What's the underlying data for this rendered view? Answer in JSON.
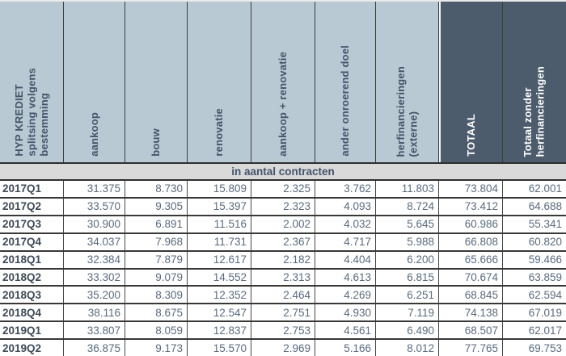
{
  "table": {
    "corner_text": "HYP KREDIET\nsplitsing volgens\nbestemming",
    "header_cells": [
      {
        "label": "aankoop",
        "dark": false
      },
      {
        "label": "bouw",
        "dark": false
      },
      {
        "label": "renovatie",
        "dark": false
      },
      {
        "label": "aankoop + renovatie",
        "dark": false
      },
      {
        "label": "ander onroerend doel",
        "dark": false
      },
      {
        "label": "herfinancieringen\n(externe)",
        "dark": false
      },
      {
        "label": "TOTAAL",
        "dark": true
      },
      {
        "label": "Totaal zonder\nherfinancieringen",
        "dark": true
      }
    ],
    "subheader": "in aantal contracten"
  },
  "colors": {
    "header_light_bg": "#b8c9d3",
    "header_dark_bg": "#4d5c6d",
    "header_text": "#44546a",
    "header_dark_text": "#ffffff",
    "subheader_bg": "#d9d9d9",
    "number_text": "#5a6b7e",
    "row_label_text": "#3e4a57",
    "border": "#383838"
  },
  "chart_data": {
    "type": "table",
    "title": "HYP KREDIET splitsing volgens bestemming",
    "subtitle": "in aantal contracten",
    "columns": [
      "aankoop",
      "bouw",
      "renovatie",
      "aankoop + renovatie",
      "ander onroerend doel",
      "herfinancieringen (externe)",
      "TOTAAL",
      "Totaal zonder herfinancieringen"
    ],
    "row_labels": [
      "2017Q1",
      "2017Q2",
      "2017Q3",
      "2017Q4",
      "2018Q1",
      "2018Q2",
      "2018Q3",
      "2018Q4",
      "2019Q1",
      "2019Q2"
    ],
    "rows": [
      [
        "31.375",
        "8.730",
        "15.809",
        "2.325",
        "3.762",
        "11.803",
        "73.804",
        "62.001"
      ],
      [
        "33.570",
        "9.305",
        "15.397",
        "2.323",
        "4.093",
        "8.724",
        "73.412",
        "64.688"
      ],
      [
        "30.900",
        "6.891",
        "11.516",
        "2.002",
        "4.032",
        "5.645",
        "60.986",
        "55.341"
      ],
      [
        "34.037",
        "7.968",
        "11.731",
        "2.367",
        "4.717",
        "5.988",
        "66.808",
        "60.820"
      ],
      [
        "32.384",
        "7.879",
        "12.617",
        "2.182",
        "4.404",
        "6.200",
        "65.666",
        "59.466"
      ],
      [
        "33.302",
        "9.079",
        "14.552",
        "2.313",
        "4.613",
        "6.815",
        "70.674",
        "63.859"
      ],
      [
        "35.200",
        "8.309",
        "12.352",
        "2.464",
        "4.269",
        "6.251",
        "68.845",
        "62.594"
      ],
      [
        "38.116",
        "8.675",
        "12.547",
        "2.751",
        "4.930",
        "7.119",
        "74.138",
        "67.019"
      ],
      [
        "33.807",
        "8.059",
        "12.837",
        "2.753",
        "4.561",
        "6.490",
        "68.507",
        "62.017"
      ],
      [
        "36.875",
        "9.173",
        "15.570",
        "2.969",
        "5.166",
        "8.012",
        "77.765",
        "69.753"
      ]
    ]
  }
}
